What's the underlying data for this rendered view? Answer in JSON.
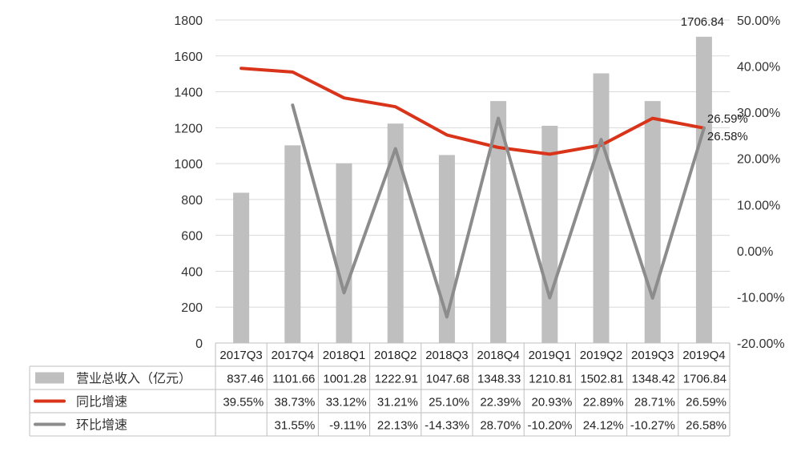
{
  "chart_data": {
    "type": "bar",
    "categories": [
      "2017Q3",
      "2017Q4",
      "2018Q1",
      "2018Q2",
      "2018Q3",
      "2018Q4",
      "2019Q1",
      "2019Q2",
      "2019Q3",
      "2019Q4"
    ],
    "series": [
      {
        "name": "营业总收入（亿元）",
        "type": "bar",
        "axis": "left",
        "color": "#bfbfbf",
        "values": [
          837.46,
          1101.66,
          1001.28,
          1222.91,
          1047.68,
          1348.33,
          1210.81,
          1502.81,
          1348.42,
          1706.84
        ],
        "labels": [
          "837.46",
          "1101.66",
          "1001.28",
          "1222.91",
          "1047.68",
          "1348.33",
          "1210.81",
          "1502.81",
          "1348.42",
          "1706.84"
        ]
      },
      {
        "name": "同比增速",
        "type": "line",
        "axis": "right",
        "color": "#d9341a",
        "values": [
          39.55,
          38.73,
          33.12,
          31.21,
          25.1,
          22.39,
          20.93,
          22.89,
          28.71,
          26.59
        ],
        "labels": [
          "39.55%",
          "38.73%",
          "33.12%",
          "31.21%",
          "25.10%",
          "22.39%",
          "20.93%",
          "22.89%",
          "28.71%",
          "26.59%"
        ]
      },
      {
        "name": "环比增速",
        "type": "line",
        "axis": "right",
        "color": "#8c8c8c",
        "values": [
          null,
          31.55,
          -9.11,
          22.13,
          -14.33,
          28.7,
          -10.2,
          24.12,
          -10.27,
          26.58
        ],
        "labels": [
          "",
          "31.55%",
          "-9.11%",
          "22.13%",
          "-14.33%",
          "28.70%",
          "-10.20%",
          "24.12%",
          "-10.27%",
          "26.58%"
        ]
      }
    ],
    "left_axis": {
      "ylim": [
        0,
        1800
      ],
      "ticks": [
        "0",
        "200",
        "400",
        "600",
        "800",
        "1000",
        "1200",
        "1400",
        "1600",
        "1800"
      ]
    },
    "right_axis": {
      "ylim": [
        -20,
        50
      ],
      "ticks": [
        "-20.00%",
        "-10.00%",
        "0.00%",
        "10.00%",
        "20.00%",
        "30.00%",
        "40.00%",
        "50.00%"
      ]
    },
    "annotations": [
      "1706.84",
      "26.59%",
      "26.58%"
    ],
    "grid": true,
    "legend": "data-table-bottom"
  }
}
